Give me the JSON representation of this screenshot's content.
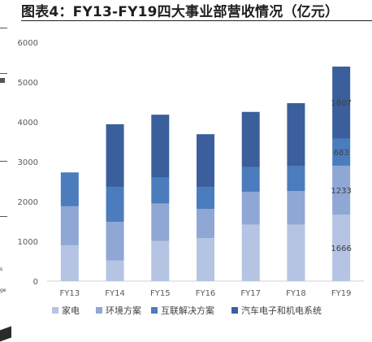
{
  "title": "图表4：FY13-FY19四大事业部营收情况（亿元）",
  "left_fragments": [
    "s",
    "ge"
  ],
  "chart_data": {
    "type": "bar",
    "stacked": true,
    "categories": [
      "FY13",
      "FY14",
      "FY15",
      "FY16",
      "FY17",
      "FY18",
      "FY19"
    ],
    "series": [
      {
        "name": "家电",
        "color": "#b4c4e2",
        "values": [
          900,
          520,
          1010,
          1080,
          1420,
          1420,
          1666
        ]
      },
      {
        "name": "环境方案",
        "color": "#8fa7d4",
        "values": [
          980,
          970,
          940,
          730,
          820,
          840,
          1233
        ]
      },
      {
        "name": "互联解决方案",
        "color": "#4b7cbd",
        "values": [
          850,
          870,
          650,
          550,
          620,
          630,
          683
        ]
      },
      {
        "name": "汽车电子和机电系统",
        "color": "#3a5f9c",
        "values": [
          0,
          1580,
          1580,
          1330,
          1390,
          1580,
          1807
        ]
      }
    ],
    "data_labels": [
      {
        "category": "FY19",
        "series": "家电",
        "text": "1666"
      },
      {
        "category": "FY19",
        "series": "环境方案",
        "text": "1233"
      },
      {
        "category": "FY19",
        "series": "互联解决方案",
        "text": "683"
      },
      {
        "category": "FY19",
        "series": "汽车电子和机电系统",
        "text": "1807"
      }
    ],
    "ylim": [
      0,
      6000
    ],
    "yticks": [
      0,
      1000,
      2000,
      3000,
      4000,
      5000,
      6000
    ],
    "grid": false,
    "legend_position": "bottom",
    "xlabel": "",
    "ylabel": ""
  }
}
